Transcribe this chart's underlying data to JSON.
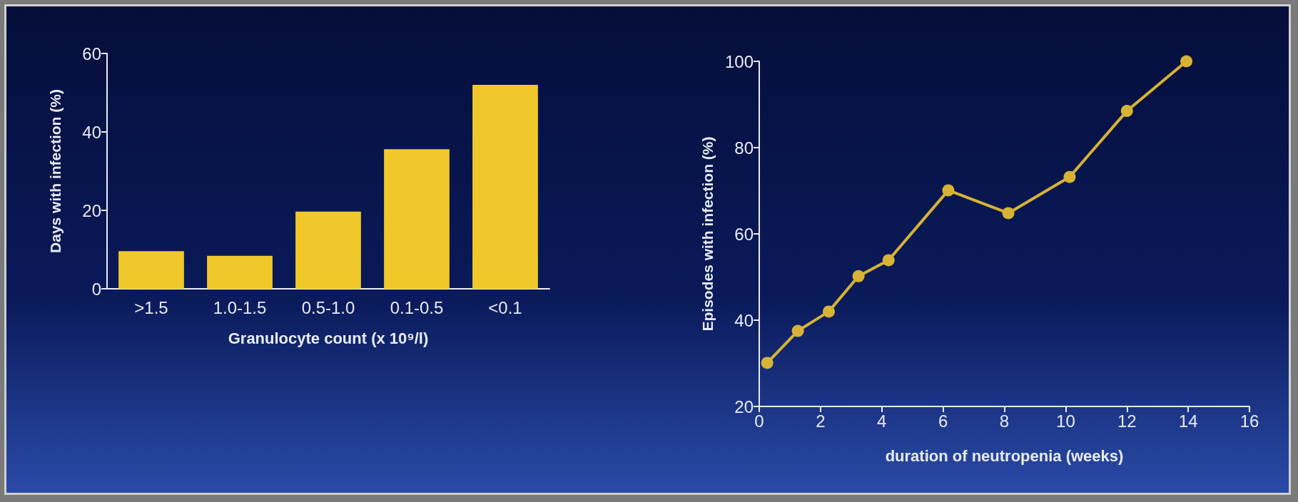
{
  "chart_data": [
    {
      "type": "bar",
      "xlabel": "Granulocyte count (x 10⁹/l)",
      "ylabel": "Days with infection (%)",
      "categories": [
        ">1.5",
        "1.0-1.5",
        "0.5-1.0",
        "0.1-0.5",
        "<0.1"
      ],
      "values": [
        9.6,
        8.4,
        19.7,
        35.6,
        52.0
      ],
      "color": "#f0c82a",
      "ylim": [
        0,
        60
      ],
      "yticks": [
        0,
        20,
        40,
        60
      ]
    },
    {
      "type": "line",
      "xlabel": "duration of neutropenia (weeks)",
      "ylabel": "Episodes with infection (%)",
      "x": [
        0.26,
        1.26,
        2.27,
        3.24,
        4.22,
        6.17,
        8.13,
        10.13,
        12.0,
        13.94
      ],
      "values": [
        30.1,
        37.5,
        42.0,
        50.2,
        53.9,
        70.1,
        64.8,
        73.2,
        88.5,
        100
      ],
      "color": "#d6b334",
      "marker": "circle",
      "xlim": [
        0,
        16
      ],
      "xticks": [
        0,
        2,
        4,
        6,
        8,
        10,
        12,
        14,
        16
      ],
      "ylim": [
        20,
        100
      ],
      "yticks": [
        20,
        40,
        60,
        80,
        100
      ]
    }
  ]
}
